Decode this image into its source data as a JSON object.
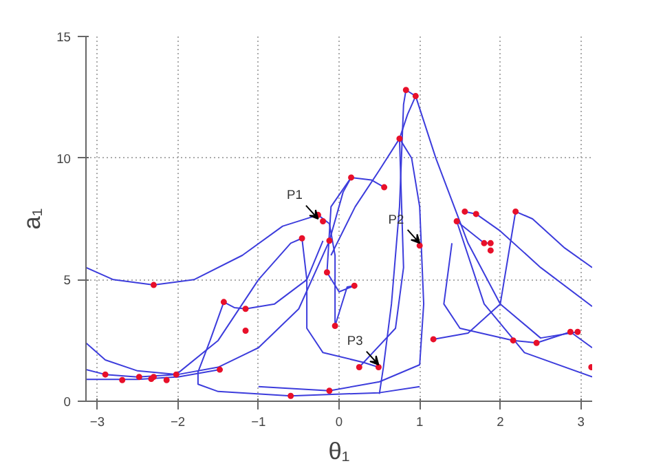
{
  "chart_data": {
    "type": "line",
    "xlabel": "θ₁",
    "ylabel": "a₁",
    "xlim": [
      -3.14,
      3.14
    ],
    "ylim": [
      0,
      15
    ],
    "xticks": [
      -3,
      -2,
      -1,
      0,
      1,
      2,
      3
    ],
    "yticks": [
      0,
      5,
      10,
      15
    ],
    "grid": true,
    "line_style": "solid",
    "series": [
      {
        "type": "line",
        "color": "#3c3cdc",
        "x": [
          -3.14,
          -2.8,
          -2.3,
          -1.8,
          -1.2,
          -0.7,
          -0.26,
          -0.12,
          -0.05,
          -0.05
        ],
        "values": [
          5.5,
          5.0,
          4.78,
          5.0,
          6.0,
          7.2,
          7.66,
          7.3,
          6.0,
          3.1
        ]
      },
      {
        "type": "line",
        "color": "#3c3cdc",
        "x": [
          -3.14,
          -2.9,
          -2.5,
          -2.0,
          -1.5,
          -1.0,
          -0.5,
          -0.12,
          0.05,
          0.15,
          0.4,
          0.56
        ],
        "values": [
          2.4,
          1.7,
          1.25,
          1.1,
          1.4,
          2.2,
          3.8,
          6.6,
          8.6,
          9.2,
          9.1,
          8.8
        ]
      },
      {
        "type": "line",
        "color": "#3c3cdc",
        "x": [
          -3.14,
          -2.9,
          -2.5,
          -2.02,
          -1.5,
          -1.0,
          -0.6,
          -0.46,
          -0.4,
          -0.4,
          -0.2,
          0.3,
          0.49
        ],
        "values": [
          1.3,
          1.1,
          1.0,
          1.1,
          2.5,
          5.0,
          6.5,
          6.7,
          5.0,
          3.0,
          2.0,
          1.6,
          1.4
        ]
      },
      {
        "type": "line",
        "color": "#3c3cdc",
        "x": [
          -3.14,
          -2.5,
          -2.0,
          -1.48
        ],
        "values": [
          0.9,
          0.9,
          1.0,
          1.3
        ]
      },
      {
        "type": "line",
        "color": "#3c3cdc",
        "x": [
          -1.43,
          -1.6,
          -1.75,
          -1.75,
          -1.5,
          -0.6,
          0.5,
          1.0
        ],
        "values": [
          4.08,
          2.5,
          1.2,
          0.7,
          0.4,
          0.22,
          0.35,
          0.6
        ]
      },
      {
        "type": "line",
        "color": "#3c3cdc",
        "x": [
          -1.43,
          -1.3,
          -1.16,
          -0.8,
          -0.4,
          -0.2
        ],
        "values": [
          4.08,
          3.85,
          3.8,
          4.0,
          5.0,
          6.6
        ]
      },
      {
        "type": "line",
        "color": "#3c3cdc",
        "x": [
          0.5,
          0.55,
          0.65,
          0.75,
          0.8,
          0.83,
          0.95,
          1.2,
          1.6,
          2.0,
          2.5,
          2.96
        ],
        "values": [
          0.3,
          1.4,
          4.0,
          8.0,
          12.2,
          12.8,
          12.55,
          10.0,
          6.5,
          4.0,
          2.6,
          2.85
        ]
      },
      {
        "type": "line",
        "color": "#3c3cdc",
        "x": [
          0.95,
          0.85,
          0.75,
          0.5,
          0.2,
          -0.1
        ],
        "values": [
          12.55,
          11.8,
          10.8,
          9.5,
          8.0,
          6.0
        ]
      },
      {
        "type": "line",
        "color": "#3c3cdc",
        "x": [
          0.25,
          0.7,
          0.8,
          0.75,
          0.9,
          1.0,
          1.05,
          1.0,
          0.5,
          -0.12,
          -1.0
        ],
        "values": [
          1.4,
          3.0,
          5.5,
          10.8,
          10.0,
          8.0,
          4.0,
          1.5,
          0.8,
          0.43,
          0.6
        ]
      },
      {
        "type": "line",
        "color": "#3c3cdc",
        "x": [
          1.17,
          1.6,
          2.0,
          2.1,
          2.19,
          2.4,
          2.8,
          3.14
        ],
        "values": [
          2.55,
          2.8,
          4.0,
          6.0,
          7.8,
          7.5,
          6.3,
          5.5
        ]
      },
      {
        "type": "line",
        "color": "#3c3cdc",
        "x": [
          1.46,
          1.8,
          1.88
        ],
        "values": [
          7.4,
          6.5,
          6.5
        ]
      },
      {
        "type": "line",
        "color": "#3c3cdc",
        "x": [
          1.56,
          1.7,
          2.0,
          2.5,
          3.14
        ],
        "values": [
          7.8,
          7.7,
          7.0,
          5.5,
          3.9
        ]
      },
      {
        "type": "line",
        "color": "#3c3cdc",
        "x": [
          1.4,
          1.3,
          1.5,
          2.16,
          2.45,
          2.87,
          3.14
        ],
        "values": [
          6.5,
          4.0,
          3.0,
          2.5,
          2.4,
          2.85,
          2.2
        ]
      },
      {
        "type": "line",
        "color": "#3c3cdc",
        "x": [
          1.46,
          1.8,
          2.3,
          3.14
        ],
        "values": [
          7.4,
          4.0,
          2.0,
          1.0
        ]
      },
      {
        "type": "line",
        "color": "#3c3cdc",
        "x": [
          -0.15,
          0.0,
          0.19,
          0.1,
          -0.05
        ],
        "values": [
          5.3,
          4.5,
          4.75,
          4.7,
          3.1
        ]
      },
      {
        "type": "line",
        "color": "#3c3cdc",
        "x": [
          0.15,
          -0.1,
          -0.15
        ],
        "values": [
          9.2,
          8.0,
          5.3
        ]
      },
      {
        "type": "scatter",
        "marker": "circle",
        "color": "#e8102a",
        "x": [
          -2.3,
          -0.26,
          -0.2,
          -0.46,
          -0.12,
          -0.15,
          0.19,
          -0.05,
          0.15,
          0.56,
          0.83,
          0.95,
          0.75,
          1.0,
          1.56,
          1.7,
          2.19,
          1.46,
          1.8,
          1.88,
          1.88,
          1.17,
          2.16,
          2.45,
          2.87,
          2.96,
          3.13,
          0.49,
          0.25,
          -0.12,
          -0.6,
          -1.43,
          -1.16,
          -1.16,
          -1.48,
          -2.9,
          -2.69,
          -2.48,
          -2.33,
          -2.3,
          -2.14,
          -2.02
        ],
        "values": [
          4.78,
          7.66,
          7.4,
          6.7,
          6.6,
          5.3,
          4.75,
          3.1,
          9.2,
          8.8,
          12.8,
          12.55,
          10.8,
          6.4,
          7.8,
          7.7,
          7.8,
          7.4,
          6.5,
          6.5,
          6.2,
          2.55,
          2.5,
          2.4,
          2.85,
          2.85,
          1.4,
          1.4,
          1.4,
          0.43,
          0.22,
          4.08,
          3.8,
          2.9,
          1.3,
          1.1,
          0.87,
          1.0,
          0.92,
          1.0,
          0.87,
          1.1
        ]
      }
    ],
    "annotations": [
      {
        "text": "P1",
        "x": -0.26,
        "y": 7.4
      },
      {
        "text": "P2",
        "x": 1.0,
        "y": 6.4
      },
      {
        "text": "P3",
        "x": 0.49,
        "y": 1.4
      }
    ]
  }
}
